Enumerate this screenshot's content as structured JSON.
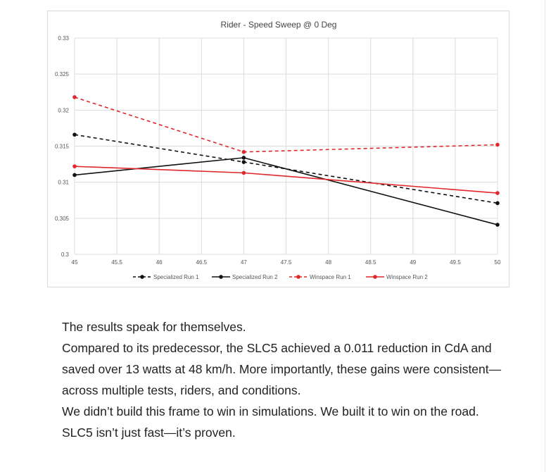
{
  "chart_data": {
    "type": "line",
    "title": "Rider - Speed Sweep @ 0 Deg",
    "xlabel": "",
    "ylabel": "",
    "xlim": [
      45,
      50
    ],
    "ylim": [
      0.3,
      0.33
    ],
    "x_ticks": [
      "45",
      "45.5",
      "46",
      "46.5",
      "47",
      "47.5",
      "48",
      "48.5",
      "49",
      "49.5",
      "50"
    ],
    "y_ticks": [
      "0.3",
      "0.305",
      "0.31",
      "0.315",
      "0.32",
      "0.325",
      "0.33"
    ],
    "grid": true,
    "legend_position": "bottom",
    "series": [
      {
        "name": "Specialized Run 1",
        "color": "#111111",
        "dashed": true,
        "x": [
          45,
          47,
          50
        ],
        "y": [
          0.3166,
          0.3128,
          0.3071
        ]
      },
      {
        "name": "Specialized Run 2",
        "color": "#111111",
        "dashed": false,
        "x": [
          45,
          47,
          50
        ],
        "y": [
          0.311,
          0.3134,
          0.3041
        ]
      },
      {
        "name": "Winspace Run 1",
        "color": "#e0282a",
        "dashed": true,
        "x": [
          45,
          47,
          50
        ],
        "y": [
          0.3218,
          0.3142,
          0.3152
        ]
      },
      {
        "name": "Winspace Run 2",
        "color": "#e0282a",
        "dashed": false,
        "x": [
          45,
          47,
          50
        ],
        "y": [
          0.3122,
          0.3113,
          0.3085
        ]
      }
    ]
  },
  "article": {
    "p1": "The results speak for themselves.",
    "p2": "Compared to its predecessor, the SLC5 achieved a 0.011 reduction in CdA and saved over 13 watts at 48 km/h. More importantly, these gains were consistent—across multiple tests, riders, and conditions.",
    "p3": "We didn’t build this frame to win in simulations. We built it to win on the road.",
    "p4": "SLC5 isn’t just fast—it’s proven."
  }
}
